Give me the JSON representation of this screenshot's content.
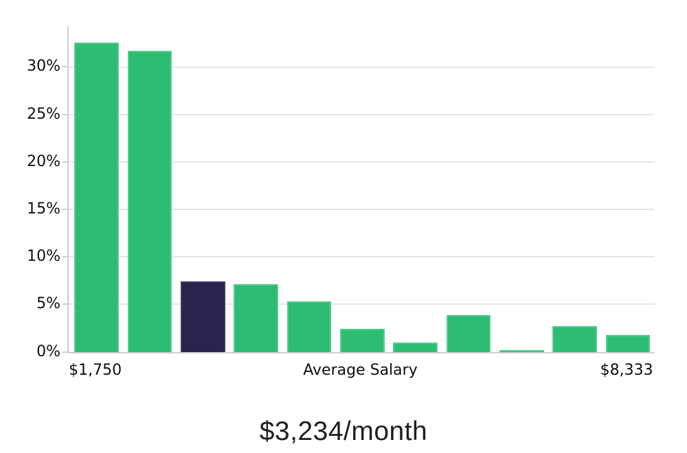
{
  "chart_data": {
    "type": "bar",
    "title": "$3,234/month",
    "values": [
      32.6,
      31.7,
      7.4,
      7.1,
      5.3,
      2.4,
      1.0,
      3.9,
      0.2,
      2.7,
      1.8
    ],
    "highlight_index": 2,
    "ylim": [
      0,
      34.3
    ],
    "grid": "horizontal",
    "legend": null,
    "y_ticks": [
      {
        "label": "0%",
        "value": 0
      },
      {
        "label": "5%",
        "value": 5
      },
      {
        "label": "10%",
        "value": 10
      },
      {
        "label": "15%",
        "value": 15
      },
      {
        "label": "20%",
        "value": 20
      },
      {
        "label": "25%",
        "value": 25
      },
      {
        "label": "30%",
        "value": 30
      }
    ],
    "x_labels": [
      {
        "text": "$1,750",
        "anchor": "bar",
        "index": 0
      },
      {
        "text": "Average Salary",
        "anchor": "plot-center",
        "index": null
      },
      {
        "text": "$8,333",
        "anchor": "bar",
        "index": 10
      }
    ],
    "colors": {
      "bar_fill": "#2dbd72",
      "bar_border": "#57cd92",
      "highlight_fill": "#29244e",
      "highlight_border": "#3d3868",
      "gridline": "#e5e5e5",
      "axis_line": "#cfcfcf",
      "tick_text": "#0f0f0f",
      "title_text": "#1f1f1f"
    }
  }
}
